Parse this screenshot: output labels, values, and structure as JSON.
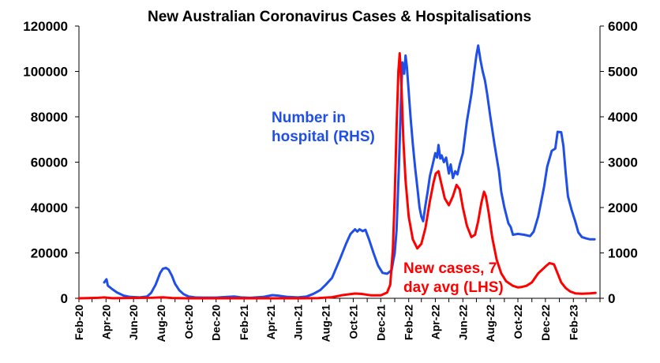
{
  "chart_data": {
    "type": "line",
    "title": "New Australian Coronavirus Cases & Hospitalisations",
    "x_ticks": [
      "Feb-20",
      "Apr-20",
      "Jun-20",
      "Aug-20",
      "Oct-20",
      "Dec-20",
      "Feb-21",
      "Apr-21",
      "Jun-21",
      "Aug-21",
      "Oct-21",
      "Dec-21",
      "Feb-22",
      "Apr-22",
      "Jun-22",
      "Aug-22",
      "Oct-22",
      "Dec-22",
      "Feb-23"
    ],
    "x_range": [
      "2020-02-01",
      "2023-04-01"
    ],
    "y_left": {
      "range": [
        0,
        120000
      ],
      "ticks": [
        "0",
        "20000",
        "40000",
        "60000",
        "80000",
        "100000",
        "120000"
      ]
    },
    "y_right": {
      "range": [
        0,
        6000
      ],
      "ticks": [
        "0",
        "1000",
        "2000",
        "3000",
        "4000",
        "5000",
        "6000"
      ]
    },
    "grid": false,
    "colors": {
      "cases": "#ff0000",
      "hospital": "#1f4fe8"
    },
    "annotations": [
      {
        "series": "hospital",
        "lines": [
          "Number in",
          "hospital (RHS)"
        ]
      },
      {
        "series": "cases",
        "lines": [
          "New cases, 7",
          "day avg (LHS)"
        ]
      }
    ],
    "series": [
      {
        "name": "Number in hospital (RHS)",
        "axis": "right",
        "color": "#1f4fe8",
        "points": [
          [
            "2020-03-28",
            350
          ],
          [
            "2020-04-02",
            420
          ],
          [
            "2020-04-05",
            280
          ],
          [
            "2020-04-15",
            200
          ],
          [
            "2020-04-25",
            130
          ],
          [
            "2020-05-10",
            60
          ],
          [
            "2020-05-25",
            30
          ],
          [
            "2020-06-15",
            20
          ],
          [
            "2020-07-01",
            40
          ],
          [
            "2020-07-10",
            120
          ],
          [
            "2020-07-20",
            300
          ],
          [
            "2020-07-30",
            560
          ],
          [
            "2020-08-05",
            650
          ],
          [
            "2020-08-12",
            670
          ],
          [
            "2020-08-18",
            630
          ],
          [
            "2020-08-25",
            500
          ],
          [
            "2020-09-01",
            320
          ],
          [
            "2020-09-10",
            180
          ],
          [
            "2020-09-20",
            90
          ],
          [
            "2020-10-01",
            40
          ],
          [
            "2020-10-15",
            20
          ],
          [
            "2020-11-01",
            15
          ],
          [
            "2020-12-01",
            15
          ],
          [
            "2020-12-25",
            30
          ],
          [
            "2021-01-10",
            40
          ],
          [
            "2021-01-25",
            20
          ],
          [
            "2021-02-15",
            10
          ],
          [
            "2021-03-15",
            30
          ],
          [
            "2021-04-05",
            70
          ],
          [
            "2021-04-20",
            55
          ],
          [
            "2021-05-10",
            30
          ],
          [
            "2021-06-01",
            20
          ],
          [
            "2021-06-20",
            40
          ],
          [
            "2021-07-05",
            100
          ],
          [
            "2021-07-20",
            180
          ],
          [
            "2021-08-01",
            300
          ],
          [
            "2021-08-15",
            450
          ],
          [
            "2021-09-01",
            850
          ],
          [
            "2021-09-15",
            1200
          ],
          [
            "2021-09-25",
            1420
          ],
          [
            "2021-10-05",
            1520
          ],
          [
            "2021-10-10",
            1470
          ],
          [
            "2021-10-15",
            1520
          ],
          [
            "2021-10-22",
            1480
          ],
          [
            "2021-10-28",
            1510
          ],
          [
            "2021-11-05",
            1300
          ],
          [
            "2021-11-15",
            1000
          ],
          [
            "2021-11-25",
            720
          ],
          [
            "2021-12-05",
            560
          ],
          [
            "2021-12-15",
            540
          ],
          [
            "2021-12-25",
            620
          ],
          [
            "2022-01-01",
            1000
          ],
          [
            "2022-01-05",
            1500
          ],
          [
            "2022-01-10",
            2800
          ],
          [
            "2022-01-15",
            4400
          ],
          [
            "2022-01-18",
            5200
          ],
          [
            "2022-01-22",
            4950
          ],
          [
            "2022-01-25",
            5350
          ],
          [
            "2022-01-28",
            5100
          ],
          [
            "2022-02-01",
            4550
          ],
          [
            "2022-02-05",
            4000
          ],
          [
            "2022-02-10",
            3400
          ],
          [
            "2022-02-15",
            2900
          ],
          [
            "2022-02-20",
            2450
          ],
          [
            "2022-02-25",
            2000
          ],
          [
            "2022-03-01",
            1800
          ],
          [
            "2022-03-05",
            1700
          ],
          [
            "2022-03-10",
            2050
          ],
          [
            "2022-03-15",
            2350
          ],
          [
            "2022-03-20",
            2700
          ],
          [
            "2022-03-25",
            2900
          ],
          [
            "2022-04-01",
            3200
          ],
          [
            "2022-04-05",
            3100
          ],
          [
            "2022-04-08",
            3380
          ],
          [
            "2022-04-12",
            3080
          ],
          [
            "2022-04-15",
            3150
          ],
          [
            "2022-04-20",
            3000
          ],
          [
            "2022-04-25",
            3100
          ],
          [
            "2022-05-01",
            2750
          ],
          [
            "2022-05-05",
            2950
          ],
          [
            "2022-05-10",
            2650
          ],
          [
            "2022-05-15",
            2800
          ],
          [
            "2022-05-20",
            2730
          ],
          [
            "2022-05-25",
            2950
          ],
          [
            "2022-06-01",
            3200
          ],
          [
            "2022-06-10",
            3900
          ],
          [
            "2022-06-20",
            4500
          ],
          [
            "2022-06-25",
            4900
          ],
          [
            "2022-07-01",
            5350
          ],
          [
            "2022-07-05",
            5570
          ],
          [
            "2022-07-10",
            5250
          ],
          [
            "2022-07-15",
            5000
          ],
          [
            "2022-07-20",
            4800
          ],
          [
            "2022-07-25",
            4500
          ],
          [
            "2022-08-01",
            4000
          ],
          [
            "2022-08-10",
            3400
          ],
          [
            "2022-08-20",
            2800
          ],
          [
            "2022-08-25",
            2350
          ],
          [
            "2022-09-01",
            2000
          ],
          [
            "2022-09-10",
            1650
          ],
          [
            "2022-09-15",
            1570
          ],
          [
            "2022-09-20",
            1400
          ],
          [
            "2022-10-01",
            1420
          ],
          [
            "2022-10-15",
            1400
          ],
          [
            "2022-10-28",
            1370
          ],
          [
            "2022-11-05",
            1470
          ],
          [
            "2022-11-15",
            1800
          ],
          [
            "2022-11-22",
            2150
          ],
          [
            "2022-11-28",
            2450
          ],
          [
            "2022-12-05",
            2900
          ],
          [
            "2022-12-15",
            3250
          ],
          [
            "2022-12-23",
            3300
          ],
          [
            "2022-12-28",
            3670
          ],
          [
            "2023-01-05",
            3660
          ],
          [
            "2023-01-10",
            3350
          ],
          [
            "2023-01-15",
            2750
          ],
          [
            "2023-01-20",
            2250
          ],
          [
            "2023-01-28",
            1950
          ],
          [
            "2023-02-05",
            1700
          ],
          [
            "2023-02-12",
            1450
          ],
          [
            "2023-02-20",
            1350
          ],
          [
            "2023-03-01",
            1320
          ],
          [
            "2023-03-10",
            1300
          ],
          [
            "2023-03-20",
            1300
          ]
        ]
      },
      {
        "name": "New cases, 7 day avg (LHS)",
        "axis": "left",
        "color": "#ff0000",
        "points": [
          [
            "2020-02-01",
            0
          ],
          [
            "2020-03-15",
            200
          ],
          [
            "2020-03-28",
            400
          ],
          [
            "2020-04-15",
            50
          ],
          [
            "2020-07-15",
            250
          ],
          [
            "2020-08-05",
            450
          ],
          [
            "2020-08-25",
            150
          ],
          [
            "2020-10-01",
            10
          ],
          [
            "2021-06-01",
            10
          ],
          [
            "2021-07-15",
            100
          ],
          [
            "2021-08-15",
            500
          ],
          [
            "2021-09-10",
            1500
          ],
          [
            "2021-10-05",
            2100
          ],
          [
            "2021-10-20",
            1900
          ],
          [
            "2021-11-10",
            1300
          ],
          [
            "2021-12-01",
            1300
          ],
          [
            "2021-12-15",
            2500
          ],
          [
            "2021-12-22",
            6000
          ],
          [
            "2021-12-28",
            22000
          ],
          [
            "2022-01-01",
            45000
          ],
          [
            "2022-01-05",
            75000
          ],
          [
            "2022-01-09",
            100000
          ],
          [
            "2022-01-12",
            108000
          ],
          [
            "2022-01-16",
            93000
          ],
          [
            "2022-01-20",
            70000
          ],
          [
            "2022-01-25",
            52000
          ],
          [
            "2022-02-01",
            36000
          ],
          [
            "2022-02-10",
            26000
          ],
          [
            "2022-02-20",
            22000
          ],
          [
            "2022-03-01",
            24000
          ],
          [
            "2022-03-10",
            31000
          ],
          [
            "2022-03-20",
            43000
          ],
          [
            "2022-03-28",
            51000
          ],
          [
            "2022-04-02",
            55000
          ],
          [
            "2022-04-08",
            56000
          ],
          [
            "2022-04-15",
            50000
          ],
          [
            "2022-04-22",
            44000
          ],
          [
            "2022-05-01",
            41000
          ],
          [
            "2022-05-10",
            45000
          ],
          [
            "2022-05-18",
            50000
          ],
          [
            "2022-05-25",
            48000
          ],
          [
            "2022-06-01",
            40000
          ],
          [
            "2022-06-10",
            32000
          ],
          [
            "2022-06-20",
            27000
          ],
          [
            "2022-06-28",
            28000
          ],
          [
            "2022-07-05",
            34000
          ],
          [
            "2022-07-12",
            42000
          ],
          [
            "2022-07-18",
            47000
          ],
          [
            "2022-07-22",
            45000
          ],
          [
            "2022-07-28",
            38000
          ],
          [
            "2022-08-05",
            27000
          ],
          [
            "2022-08-15",
            17000
          ],
          [
            "2022-08-25",
            11000
          ],
          [
            "2022-09-05",
            7500
          ],
          [
            "2022-09-20",
            5500
          ],
          [
            "2022-10-01",
            4800
          ],
          [
            "2022-10-10",
            5000
          ],
          [
            "2022-10-20",
            5500
          ],
          [
            "2022-11-01",
            7000
          ],
          [
            "2022-11-15",
            11000
          ],
          [
            "2022-12-01",
            14000
          ],
          [
            "2022-12-10",
            15500
          ],
          [
            "2022-12-20",
            15000
          ],
          [
            "2022-12-28",
            11000
          ],
          [
            "2023-01-05",
            7000
          ],
          [
            "2023-01-15",
            4500
          ],
          [
            "2023-01-25",
            3000
          ],
          [
            "2023-02-05",
            2200
          ],
          [
            "2023-02-20",
            2000
          ],
          [
            "2023-03-10",
            2200
          ],
          [
            "2023-03-22",
            2400
          ]
        ]
      }
    ]
  }
}
